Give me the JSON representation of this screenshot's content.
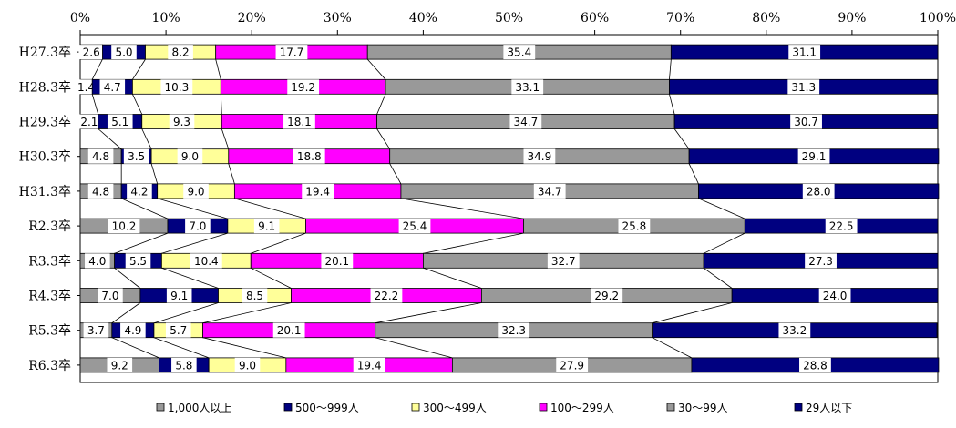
{
  "chart_data": {
    "type": "bar",
    "orientation": "horizontal",
    "stacked": "percent",
    "xlim": [
      0,
      100
    ],
    "x_ticks": [
      "0%",
      "10%",
      "20%",
      "30%",
      "40%",
      "50%",
      "60%",
      "70%",
      "80%",
      "90%",
      "100%"
    ],
    "grid": false,
    "legend_position": "bottom",
    "categories": [
      "H27.3卒",
      "H28.3卒",
      "H29.3卒",
      "H30.3卒",
      "H31.3卒",
      "R2.3卒",
      "R3.3卒",
      "R4.3卒",
      "R5.3卒",
      "R6.3卒"
    ],
    "series": [
      {
        "name": "1,000人以上",
        "color": "#999999",
        "values": [
          2.6,
          1.4,
          2.1,
          4.8,
          4.8,
          10.2,
          4.0,
          7.0,
          3.7,
          9.2
        ],
        "labels": [
          "2.6",
          "1.4",
          "2.1",
          "4.8",
          "4.8",
          "10.2",
          "4.0",
          "7.0",
          "3.7",
          "9.2"
        ]
      },
      {
        "name": "500～999人",
        "color": "#000080",
        "values": [
          5.0,
          4.7,
          5.1,
          3.5,
          4.2,
          7.0,
          5.5,
          9.1,
          4.9,
          5.8
        ],
        "labels": [
          "5.0",
          "4.7",
          "5.1",
          "3.5",
          "4.2",
          "7.0",
          "5.5",
          "9.1",
          "4.9",
          "5.8"
        ]
      },
      {
        "name": "300～499人",
        "color": "#FFFF99",
        "values": [
          8.2,
          10.3,
          9.3,
          9.0,
          9.0,
          9.1,
          10.4,
          8.5,
          5.7,
          9.0
        ],
        "labels": [
          "8.2",
          "10.3",
          "9.3",
          "9.0",
          "9.0",
          "9.1",
          "10.4",
          "8.5",
          "5.7",
          "9.0"
        ]
      },
      {
        "name": "100～299人",
        "color": "#FF00FF",
        "values": [
          17.7,
          19.2,
          18.1,
          18.8,
          19.4,
          25.4,
          20.1,
          22.2,
          20.1,
          19.4
        ],
        "labels": [
          "17.7",
          "19.2",
          "18.1",
          "18.8",
          "19.4",
          "25.4",
          "20.1",
          "22.2",
          "20.1",
          "19.4"
        ]
      },
      {
        "name": "30～99人",
        "color": "#999999",
        "values": [
          35.4,
          33.1,
          34.7,
          34.9,
          34.7,
          25.8,
          32.7,
          29.2,
          32.3,
          27.9
        ],
        "labels": [
          "35.4",
          "33.1",
          "34.7",
          "34.9",
          "34.7",
          "25.8",
          "32.7",
          "29.2",
          "32.3",
          "27.9"
        ]
      },
      {
        "name": "29人以下",
        "color": "#000080",
        "values": [
          31.1,
          31.3,
          30.7,
          29.1,
          28.0,
          22.5,
          27.3,
          24.0,
          33.2,
          28.8
        ],
        "labels": [
          "31.1",
          "31.3",
          "30.7",
          "29.1",
          "28.0",
          "22.5",
          "27.3",
          "24.0",
          "33.2",
          "28.8"
        ]
      }
    ]
  }
}
